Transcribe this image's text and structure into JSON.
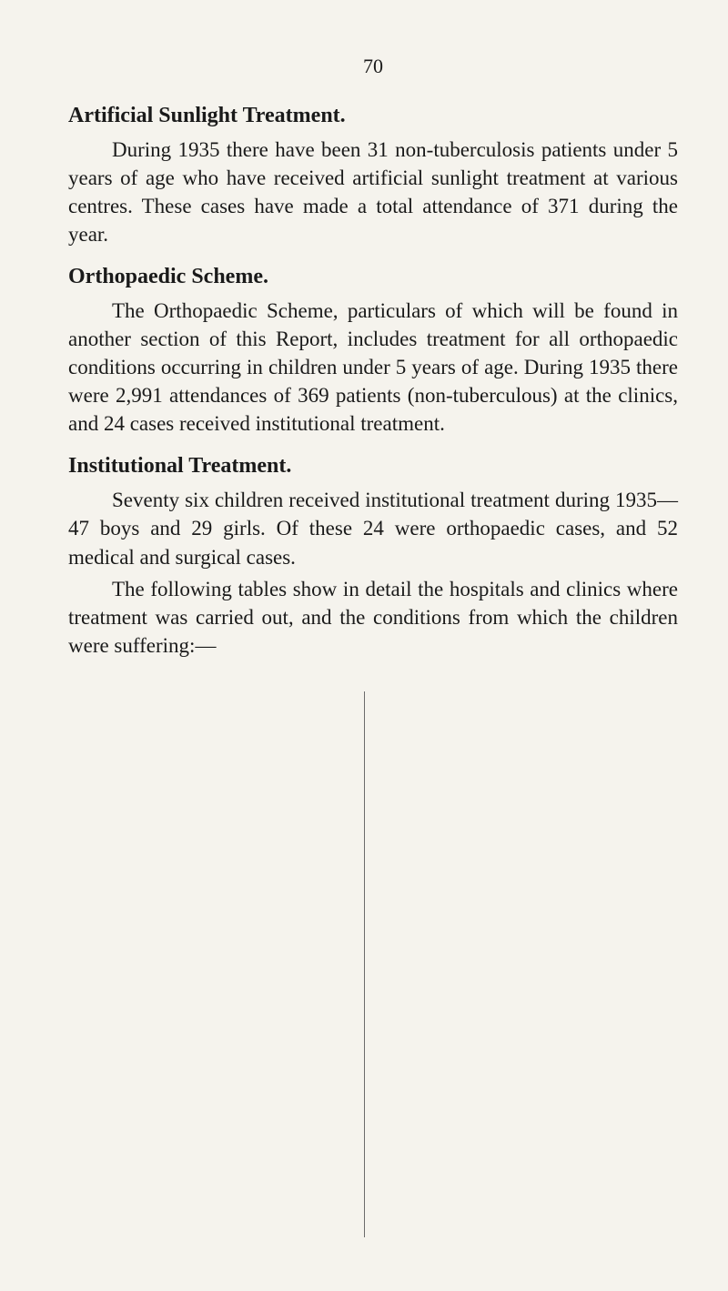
{
  "page_number": "70",
  "sections": [
    {
      "heading": "Artificial Sunlight Treatment.",
      "paragraphs": [
        "During 1935 there have been 31 non-tuberculosis patients under 5 years of age who have received artificial sunlight treatment at various centres. These cases have made a total attendance of 371 during the year."
      ]
    },
    {
      "heading": "Orthopaedic Scheme.",
      "paragraphs": [
        "The Orthopaedic Scheme, particulars of which will be found in another section of this Report, includes treatment for all orthopaedic conditions occurring in children under 5 years of age. During 1935 there were 2,991 attendances of 369 patients (non-tuberculous) at the clinics, and 24 cases received institutional treatment."
      ]
    },
    {
      "heading": "Institutional Treatment.",
      "paragraphs": [
        "Seventy six children received institutional treatment during 1935—47 boys and 29 girls. Of these 24 were ortho­paedic cases, and 52 medical and surgical cases.",
        "The following tables show in detail the hospitals and clinics where treatment was carried out, and the conditions from which the children were suffering:—"
      ]
    }
  ],
  "styling": {
    "background_color": "#f5f3ed",
    "text_color": "#1a1a1a",
    "font_family": "Times New Roman",
    "page_number_fontsize": 22,
    "heading_fontsize": 24,
    "heading_weight": "bold",
    "body_fontsize": 23,
    "line_height": 1.35,
    "text_indent": 48,
    "divider_color": "#6b6b6b"
  }
}
